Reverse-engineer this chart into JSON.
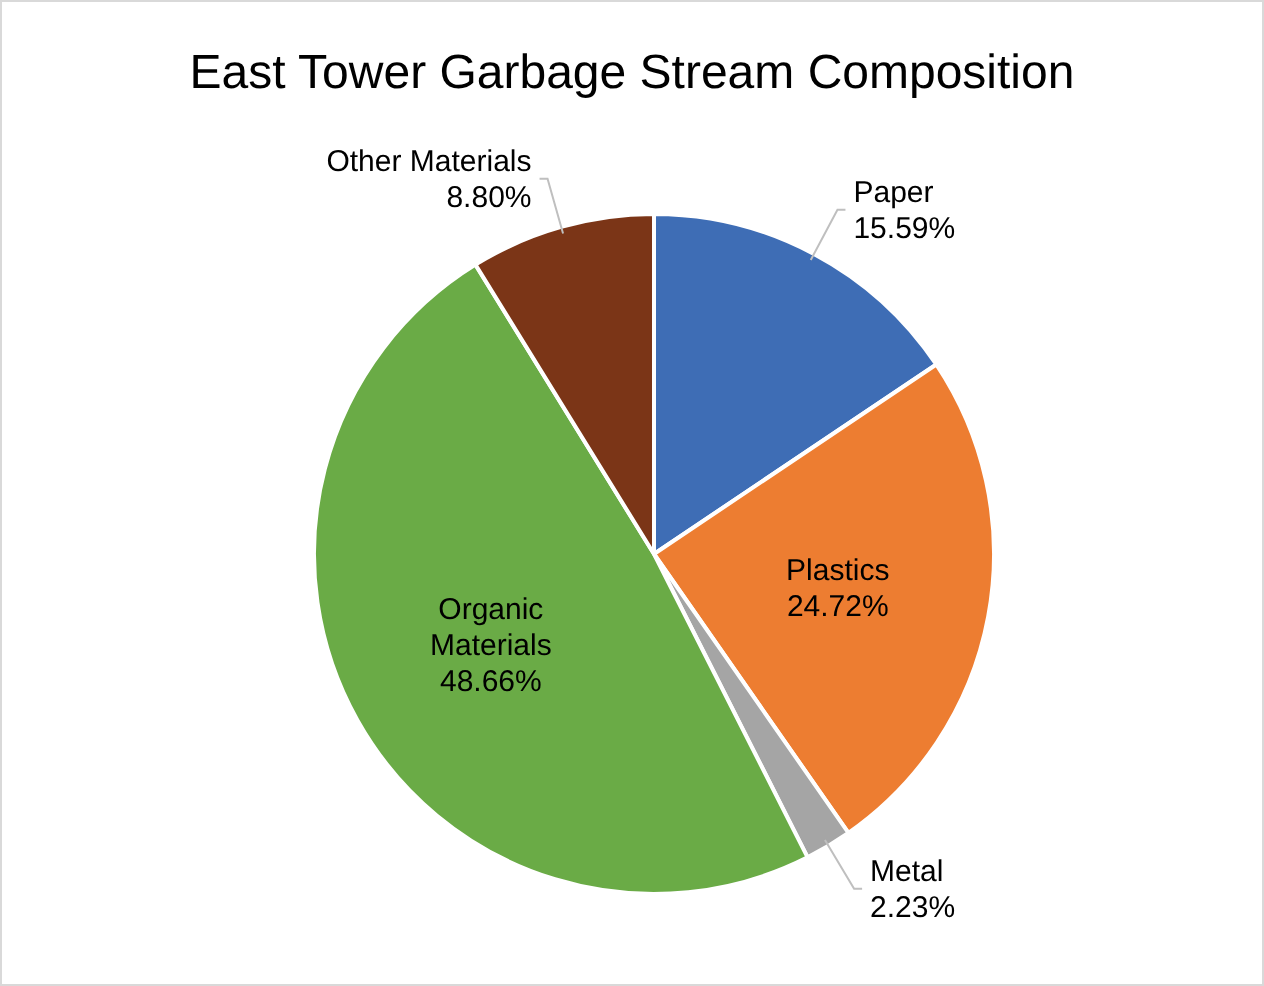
{
  "chart_data": {
    "type": "pie",
    "title": "East Tower Garbage Stream Composition",
    "categories": [
      "Paper",
      "Plastics",
      "Metal",
      "Organic Materials",
      "Other Materials"
    ],
    "values": [
      15.59,
      24.72,
      2.23,
      48.66,
      8.8
    ],
    "value_labels": [
      "15.59%",
      "24.72%",
      "2.23%",
      "48.66%",
      "8.80%"
    ],
    "colors": [
      "#3e6db5",
      "#ed7d31",
      "#a5a5a5",
      "#6aab46",
      "#7b3517"
    ],
    "legend": false
  }
}
